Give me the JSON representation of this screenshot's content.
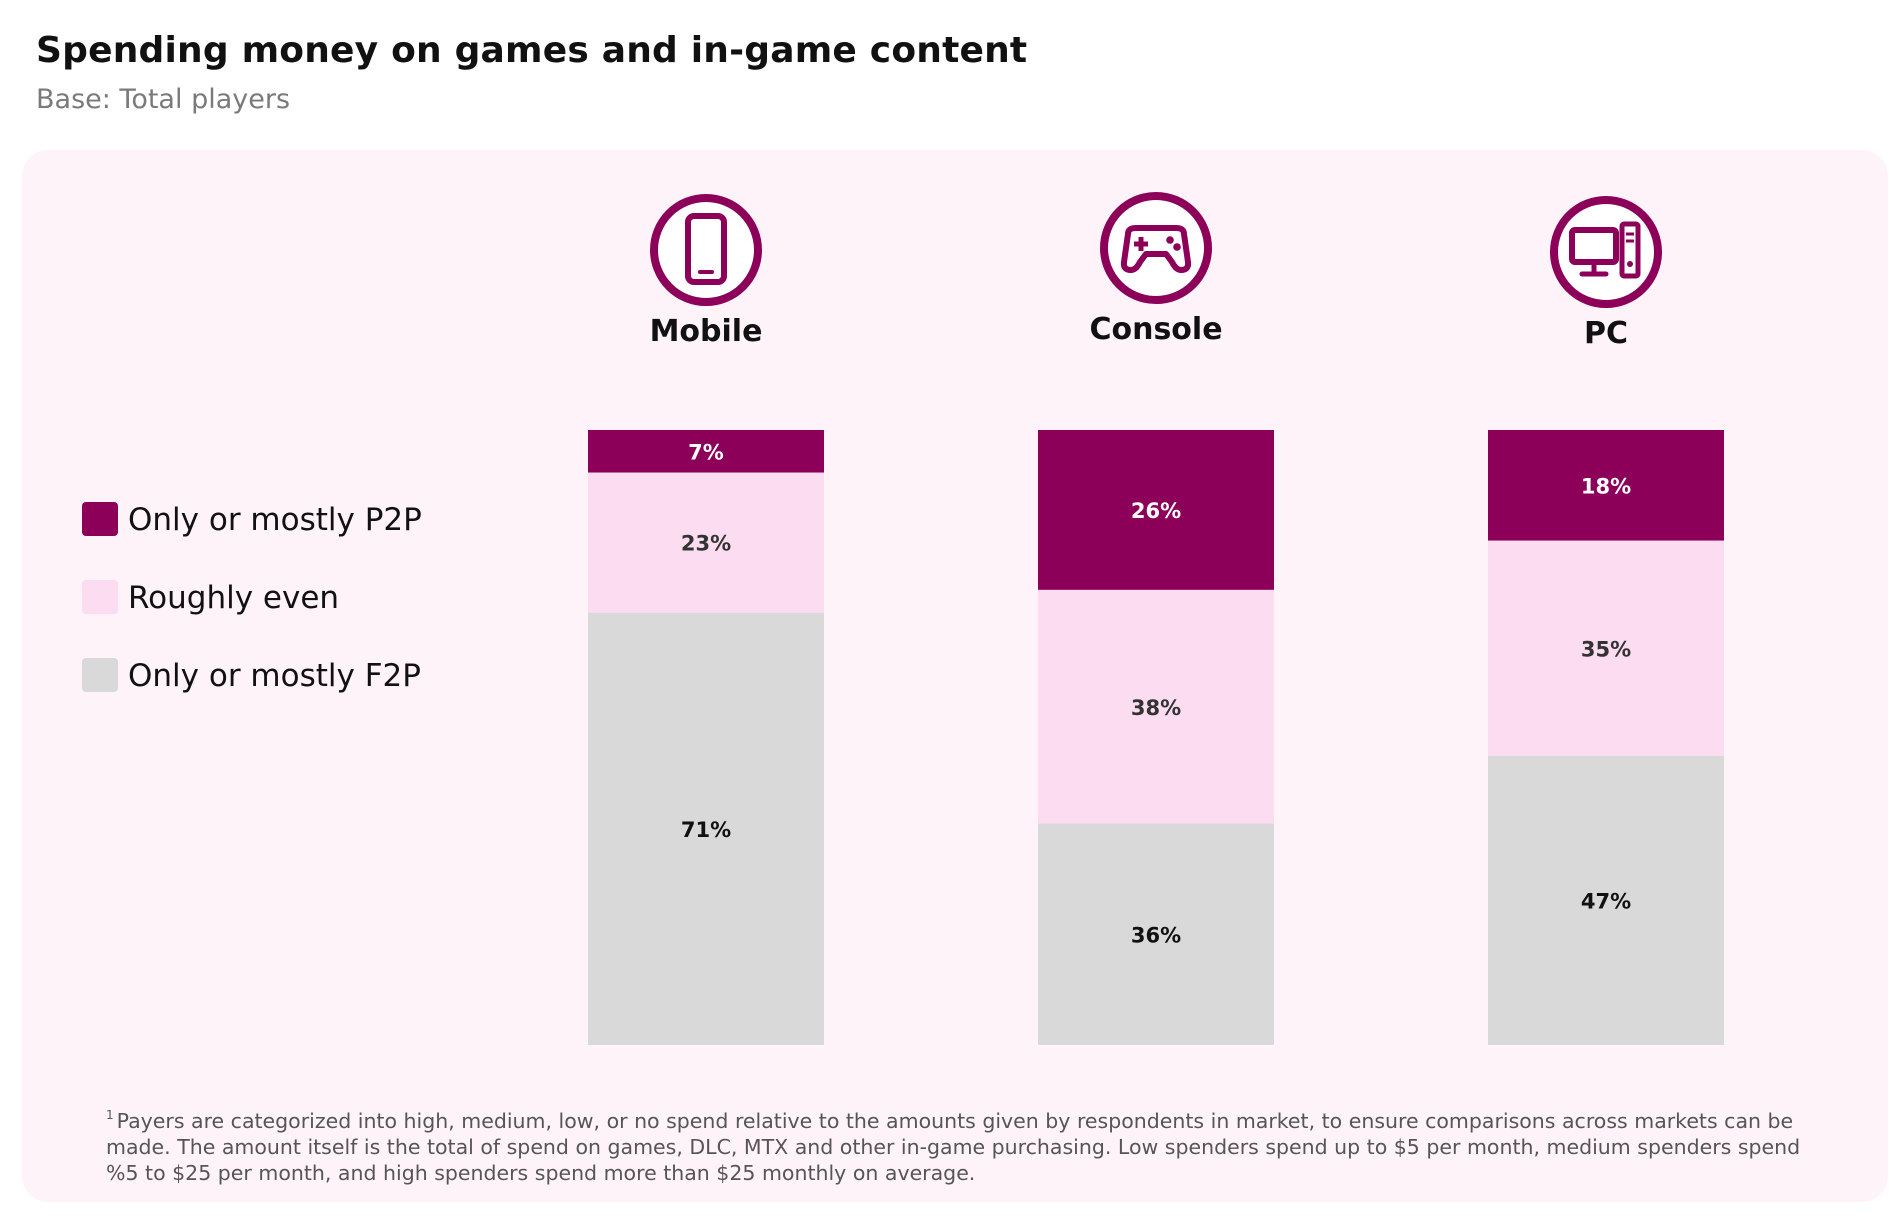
{
  "title": "Spending money on games and in-game content",
  "subtitle": "Base: Total players",
  "colors": {
    "p2p": "#8c005a",
    "even": "#fbdcf0",
    "f2p": "#d9d9d9",
    "panel": "#fef3f9"
  },
  "platforms": [
    {
      "label": "Mobile",
      "icon": "mobile-phone-icon"
    },
    {
      "label": "Console",
      "icon": "gamepad-icon"
    },
    {
      "label": "PC",
      "icon": "desktop-computer-icon"
    }
  ],
  "chart_data": {
    "type": "bar",
    "stacked": true,
    "categories": [
      "Mobile",
      "Console",
      "PC"
    ],
    "series": [
      {
        "name": "Only or mostly P2P",
        "values": [
          7,
          26,
          18
        ],
        "labels": [
          "7%",
          "26%",
          "18%"
        ],
        "color": "#8c005a",
        "label_color": "#ffffff"
      },
      {
        "name": "Roughly even",
        "values": [
          23,
          38,
          35
        ],
        "labels": [
          "23%",
          "38%",
          "35%"
        ],
        "color": "#fbdcf0",
        "label_color": "#333333"
      },
      {
        "name": "Only or mostly F2P",
        "values": [
          71,
          36,
          47
        ],
        "labels": [
          "71%",
          "36%",
          "47%"
        ],
        "color": "#d9d9d9",
        "label_color": "#111111"
      }
    ],
    "legend": "left",
    "grid": false
  },
  "footnote": {
    "marker": "1",
    "text": "Payers are categorized into high, medium, low, or no spend relative to the amounts given by respondents in market, to ensure comparisons across markets can be made. The amount itself is the total of spend on games, DLC, MTX and other in-game purchasing. Low spenders spend up to $5 per month, medium spenders spend %5 to $25 per month, and high spenders spend more than $25 monthly on average."
  }
}
